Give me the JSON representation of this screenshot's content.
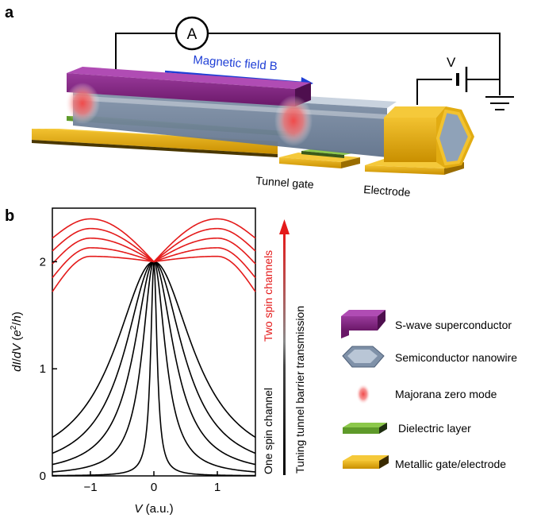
{
  "panel_a": {
    "letter": "a",
    "ammeter_label": "A",
    "battery_label": "V",
    "field_label": "Magnetic field B",
    "tunnel_gate_label": "Tunnel gate",
    "electrode_label": "Electrode",
    "colors": {
      "superconductor": "#7a1f7a",
      "nanowire": "#8fa2b8",
      "majorana": "#f06a6a",
      "dielectric": "#7db83a",
      "metal": "#e0a400",
      "field_arrow": "#1f3fd6"
    }
  },
  "panel_b": {
    "letter": "b",
    "arrow_label_red": "Two spin channels",
    "arrow_label_middle": "Tuning tunnel barrier transmission",
    "arrow_label_black": "One spin channel",
    "legend": [
      {
        "label": "S-wave superconductor",
        "icon": "superconductor-icon"
      },
      {
        "label": "Semiconductor nanowire",
        "icon": "nanowire-icon"
      },
      {
        "label": "Majorana zero mode",
        "icon": "majorana-icon"
      },
      {
        "label": "Dielectric layer",
        "icon": "dielectric-icon"
      },
      {
        "label": "Metallic gate/electrode",
        "icon": "metal-icon"
      }
    ]
  },
  "chart_data": {
    "type": "line",
    "xlabel": "V (a.u.)",
    "ylabel": "dI/dV (e²/h)",
    "xlim": [
      -1.6,
      1.6
    ],
    "ylim": [
      0,
      2.5
    ],
    "xticks": [
      -1,
      0,
      1
    ],
    "xtick_labels": [
      "−1",
      "0",
      "1"
    ],
    "yticks": [
      0,
      1,
      2
    ],
    "ytick_labels": [
      "0",
      "1",
      "2"
    ],
    "grid": false,
    "series_colors": {
      "one_spin": "#000000",
      "two_spin": "#e41a1a"
    },
    "one_spin_channel_widths": [
      0.06,
      0.22,
      0.38,
      0.55,
      0.75
    ],
    "two_spin_channel_edge_values": [
      1.72,
      1.85,
      1.98,
      2.1,
      2.22
    ],
    "two_spin_channel_peak_values": [
      2.05,
      2.13,
      2.22,
      2.31,
      2.4
    ],
    "peak_position": 1.0,
    "zero_bias_value": 2.0
  }
}
